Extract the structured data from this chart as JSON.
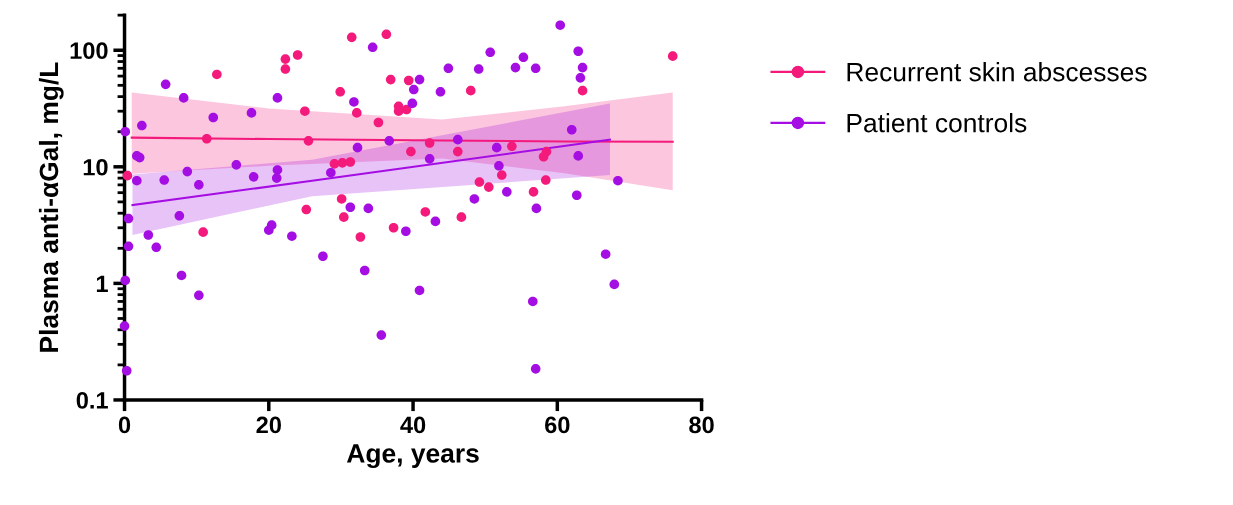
{
  "chart_data": {
    "type": "scatter",
    "xlabel": "Age, years",
    "ylabel": "Plasma anti-αGal, mg/L",
    "log": "y",
    "xlim": [
      0,
      80
    ],
    "xticks": [
      0,
      20,
      40,
      60,
      80
    ],
    "ylim": [
      0.1,
      200
    ],
    "yticks": [
      0.1,
      1,
      10,
      100
    ],
    "grid": false,
    "legend": "right",
    "marker": "circle",
    "series": [
      {
        "name": "Recurrent skin abscesses",
        "color": "#f31a7c",
        "x": [
          0.4,
          12.8,
          11.4,
          10.9,
          22.3,
          22.3,
          24.0,
          25.0,
          25.5,
          25.2,
          31.5,
          36.3,
          36.9,
          39.4,
          29.9,
          48.0,
          32.2,
          38.0,
          38.0,
          39.1,
          35.2,
          42.3,
          39.7,
          46.2,
          29.1,
          30.2,
          31.3,
          30.1,
          30.4,
          41.7,
          46.7,
          37.3,
          32.7,
          49.2,
          50.5,
          76.0,
          63.5,
          53.7,
          58.5,
          58.1,
          52.3,
          58.4,
          56.7
        ],
        "values": [
          8.4,
          62,
          17.4,
          2.75,
          84,
          69,
          91,
          30,
          16.7,
          4.3,
          129,
          137,
          56,
          55,
          44,
          45,
          29,
          33,
          30,
          31,
          24,
          16,
          13.5,
          13.5,
          10.6,
          10.8,
          11.0,
          5.3,
          3.7,
          4.1,
          3.7,
          3.0,
          2.5,
          7.4,
          6.7,
          89,
          45,
          15,
          13.5,
          12.2,
          8.5,
          7.7,
          6.1
        ]
      },
      {
        "name": "Patient controls",
        "color": "#a50ee3",
        "x": [
          0.1,
          2.4,
          5.7,
          8.2,
          12.3,
          1.7,
          2.1,
          1.7,
          5.5,
          8.7,
          10.3,
          15.5,
          17.6,
          17.9,
          21.2,
          21.2,
          21.1,
          0.55,
          3.3,
          4.4,
          0.55,
          7.6,
          20.0,
          20.4,
          23.2,
          7.9,
          10.3,
          0.1,
          0,
          0.3,
          34.4,
          31.8,
          40.9,
          40.1,
          39.9,
          44.9,
          43.8,
          49.1,
          50.7,
          32.3,
          36.7,
          46.2,
          42.3,
          28.6,
          31.3,
          33.8,
          43.1,
          39.0,
          48.5,
          27.5,
          33.3,
          40.9,
          35.6,
          51.6,
          51.9,
          60.4,
          55.3,
          54.2,
          57.0,
          62.9,
          63.5,
          63.2,
          62.0,
          62.9,
          53.0,
          57.1,
          62.7,
          68.4,
          66.7,
          67.9,
          56.6,
          57.0
        ],
        "values": [
          20,
          22.6,
          51,
          39,
          26.5,
          12.4,
          12.0,
          7.6,
          7.7,
          9.1,
          7.0,
          10.4,
          29,
          8.2,
          39,
          9.4,
          8.0,
          3.6,
          2.6,
          2.04,
          2.08,
          3.8,
          2.86,
          3.16,
          2.54,
          1.17,
          0.79,
          1.06,
          0.43,
          0.178,
          106,
          36,
          56,
          46,
          35,
          70,
          44,
          69,
          96,
          14.6,
          16.7,
          17.1,
          11.7,
          8.9,
          4.5,
          4.4,
          3.4,
          2.8,
          5.3,
          1.71,
          1.29,
          0.87,
          0.36,
          14.6,
          10.2,
          164,
          87,
          71,
          70,
          98,
          71,
          58,
          20.8,
          12.4,
          6.1,
          4.4,
          5.7,
          7.6,
          1.78,
          0.98,
          0.7,
          0.185
        ]
      },
      {
        "type": "line",
        "marker": "none",
        "color": "#f31a7c",
        "x": [
          1.0,
          20,
          44,
          61,
          76
        ],
        "values": [
          17.8,
          17.3,
          16.8,
          16.5,
          16.4
        ],
        "lower": [
          8.7,
          10.2,
          11.8,
          8.8,
          6.3
        ],
        "upper": [
          43.5,
          31.6,
          25.5,
          33,
          43.5
        ]
      },
      {
        "type": "line",
        "marker": "none",
        "color": "#a50ee3",
        "x": [
          1.1,
          26,
          67.3
        ],
        "values": [
          4.7,
          7.6,
          17.1
        ],
        "lower": [
          2.6,
          5.6,
          8.5
        ],
        "upper": [
          8.6,
          11.5,
          34.9
        ]
      }
    ]
  }
}
